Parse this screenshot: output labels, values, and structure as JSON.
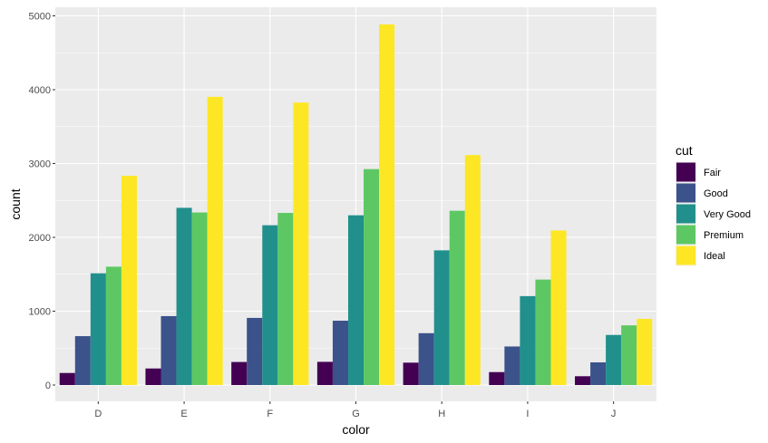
{
  "chart_data": {
    "type": "bar",
    "layout": "dodge",
    "xlabel": "color",
    "ylabel": "count",
    "categories": [
      "D",
      "E",
      "F",
      "G",
      "H",
      "I",
      "J"
    ],
    "ylim": [
      0,
      5000
    ],
    "yticks": [
      0,
      1000,
      2000,
      3000,
      4000,
      5000
    ],
    "y_tick_labels": [
      "0",
      "1000",
      "2000",
      "3000",
      "4000",
      "5000"
    ],
    "grid": true,
    "legend": {
      "title": "cut",
      "position": "right"
    },
    "series": [
      {
        "name": "Fair",
        "color": "#440154",
        "values": [
          163,
          224,
          312,
          314,
          303,
          175,
          119
        ]
      },
      {
        "name": "Good",
        "color": "#3B528B",
        "values": [
          662,
          933,
          909,
          871,
          702,
          522,
          307
        ]
      },
      {
        "name": "Very Good",
        "color": "#21908C",
        "values": [
          1513,
          2400,
          2164,
          2299,
          1824,
          1204,
          678
        ]
      },
      {
        "name": "Premium",
        "color": "#5DC863",
        "values": [
          1603,
          2337,
          2331,
          2924,
          2360,
          1428,
          808
        ]
      },
      {
        "name": "Ideal",
        "color": "#FDE725",
        "values": [
          2834,
          3903,
          3826,
          4884,
          3115,
          2093,
          896
        ]
      }
    ]
  }
}
